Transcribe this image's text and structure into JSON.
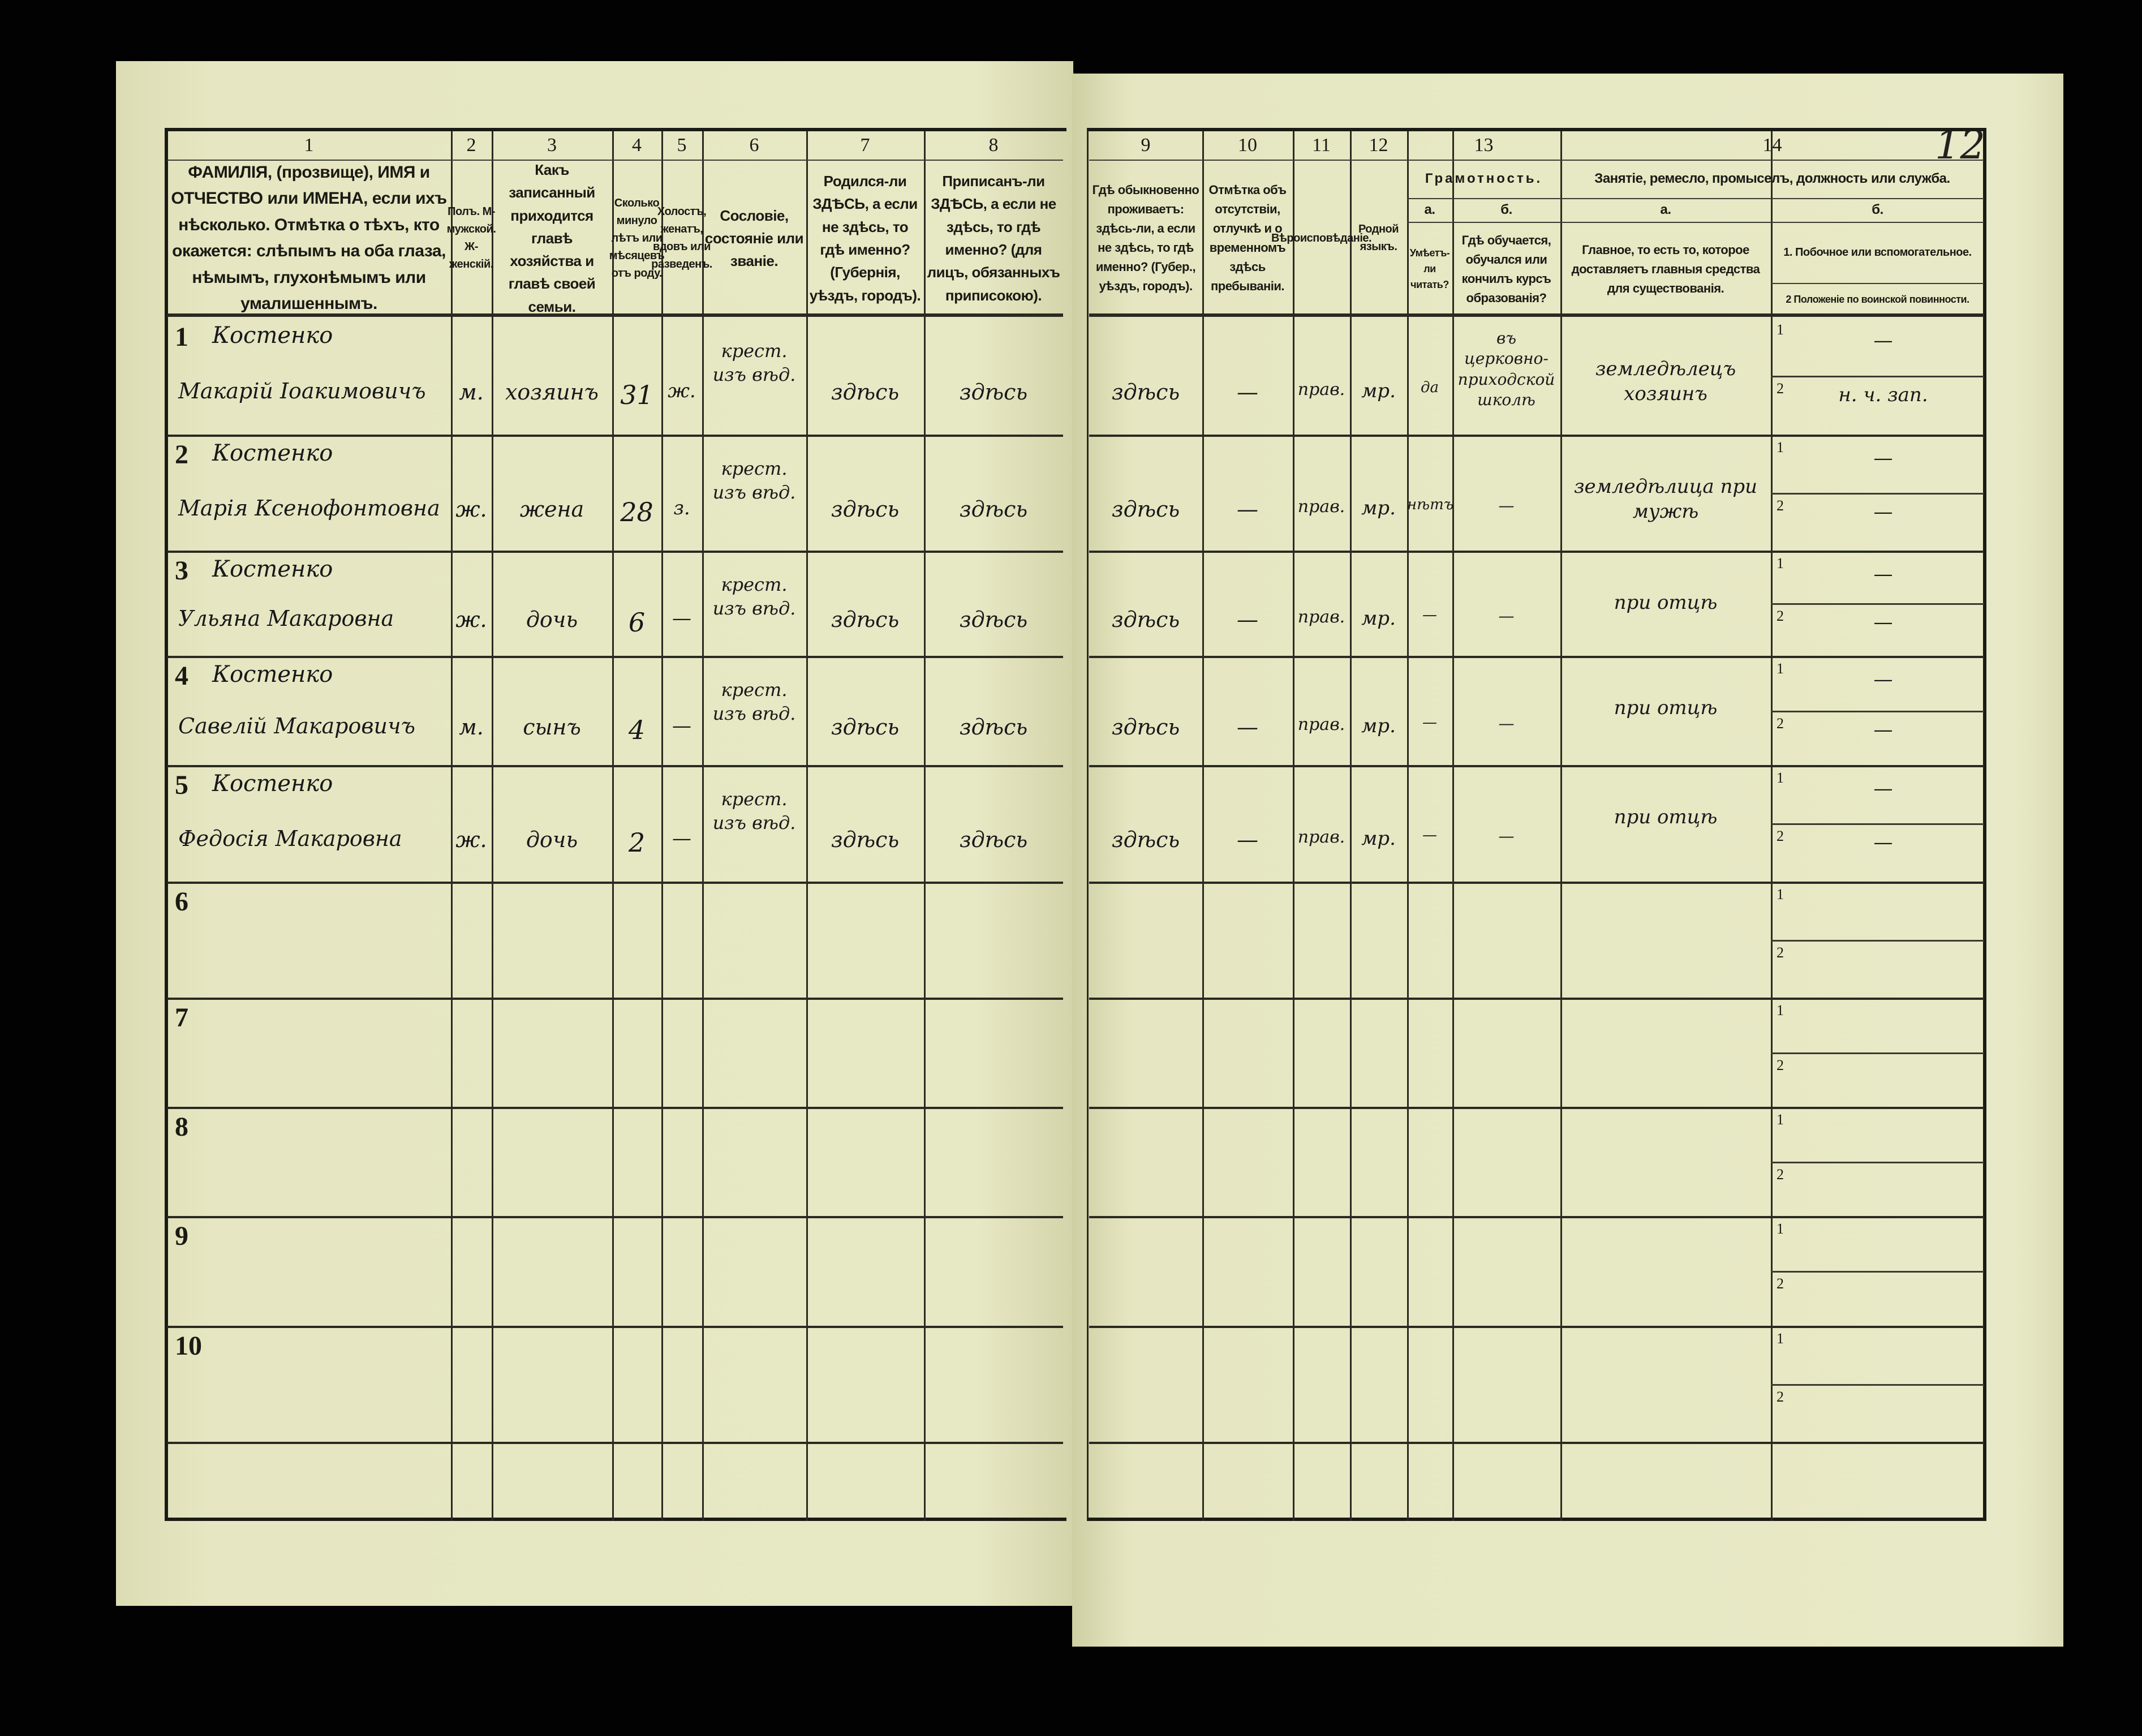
{
  "document": {
    "sheet_number_handwritten": "12",
    "left_header": {
      "columns": [
        {
          "num": "1",
          "text": "ФАМИЛІЯ, (прозвище), ИМЯ и ОТЧЕСТВО или ИМЕНА, если ихъ нѣсколько. Отмѣтка о тѣхъ, кто окажется: слѣпымъ на оба глаза, нѣмымъ, глухонѣмымъ или умалишеннымъ."
        },
        {
          "num": "2",
          "text": "Полъ. М-мужской. Ж-женскій."
        },
        {
          "num": "3",
          "text": "Какъ записанный приходится главѣ хозяйства и главѣ своей семьи."
        },
        {
          "num": "4",
          "text": "Сколько минуло лѣтъ или мѣсяцевъ отъ роду."
        },
        {
          "num": "5",
          "text": "Холостъ, женатъ, вдовъ или разведенъ."
        },
        {
          "num": "6",
          "text": "Сословіе, состояніе или званіе."
        },
        {
          "num": "7",
          "text": "Родился-ли ЗДѢСЬ, а если не здѣсь, то гдѣ именно? (Губернія, уѣздъ, городъ)."
        },
        {
          "num": "8",
          "text": "Приписанъ-ли ЗДѢСЬ, а если не здѣсь, то гдѣ именно? (для лицъ, обязанныхъ приписокою)."
        }
      ]
    },
    "right_header": {
      "col9": {
        "num": "9",
        "text": "Гдѣ обыкновенно проживаетъ: здѣсь-ли, а если не здѣсь, то гдѣ именно? (Губер., уѣздъ, городъ)."
      },
      "col10": {
        "num": "10",
        "text": "Отмѣтка объ отсутствіи, отлучкѣ и о временномъ здѣсь пребываніи."
      },
      "col11": {
        "num": "11",
        "text": "Вѣроисповѣданіе."
      },
      "col12": {
        "num": "12",
        "text": "Родной языкъ."
      },
      "col13": {
        "num": "13",
        "title": "Грамотность.",
        "a_label": "а.",
        "a_text": "Умѣетъ-ли читать?",
        "b_label": "б.",
        "b_text": "Гдѣ обучается, обучался или кончилъ курсъ образованія?"
      },
      "col14": {
        "num": "14",
        "title": "Занятіе, ремесло, промыселъ, должность или служба.",
        "a_label": "а.",
        "a_text": "Главное, то есть то, которое доставляетъ главныя средства для существованія.",
        "b_label": "б.",
        "b_text_1": "1. Побочное или вспомогательное.",
        "b_text_2": "2 Положеніе по воинской повинности."
      }
    },
    "rows": [
      {
        "n": "1",
        "surname": "Костенко",
        "name": "Макарій Іоакимовичъ",
        "sex": "м.",
        "relation": "хозяинъ",
        "age": "31",
        "marital": "ж.",
        "estate": "крест. изъ вѣд.",
        "born": "здѣсь",
        "registered": "здѣсь",
        "resides": "здѣсь",
        "absence": "—",
        "religion": "прав.",
        "language": "мр.",
        "literate": "да",
        "education": "въ церковно-приходской школѣ",
        "occupation": "земледѣлецъ хозяинъ",
        "sub1_label": "1",
        "sub1": "—",
        "sub2_label": "2",
        "sub2": "н. ч. зап."
      },
      {
        "n": "2",
        "surname": "Костенко",
        "name": "Марія Ксенофонтовна",
        "sex": "ж.",
        "relation": "жена",
        "age": "28",
        "marital": "з.",
        "estate": "крест. изъ вѣд.",
        "born": "здѣсь",
        "registered": "здѣсь",
        "resides": "здѣсь",
        "absence": "—",
        "religion": "прав.",
        "language": "мр.",
        "literate": "нѣтъ",
        "education": "—",
        "occupation": "земледѣлица при мужѣ",
        "sub1_label": "1",
        "sub1": "—",
        "sub2_label": "2",
        "sub2": "—"
      },
      {
        "n": "3",
        "surname": "Костенко",
        "name": "Ульяна Макаровна",
        "sex": "ж.",
        "relation": "дочь",
        "age": "6",
        "marital": "—",
        "estate": "крест. изъ вѣд.",
        "born": "здѣсь",
        "registered": "здѣсь",
        "resides": "здѣсь",
        "absence": "—",
        "religion": "прав.",
        "language": "мр.",
        "literate": "—",
        "education": "—",
        "occupation": "при отцѣ",
        "sub1_label": "1",
        "sub1": "—",
        "sub2_label": "2",
        "sub2": "—"
      },
      {
        "n": "4",
        "surname": "Костенко",
        "name": "Савелій Макаровичъ",
        "sex": "м.",
        "relation": "сынъ",
        "age": "4",
        "marital": "—",
        "estate": "крест. изъ вѣд.",
        "born": "здѣсь",
        "registered": "здѣсь",
        "resides": "здѣсь",
        "absence": "—",
        "religion": "прав.",
        "language": "мр.",
        "literate": "—",
        "education": "—",
        "occupation": "при отцѣ",
        "sub1_label": "1",
        "sub1": "—",
        "sub2_label": "2",
        "sub2": "—"
      },
      {
        "n": "5",
        "surname": "Костенко",
        "name": "Федосія Макаровна",
        "sex": "ж.",
        "relation": "дочь",
        "age": "2",
        "marital": "—",
        "estate": "крест. изъ вѣд.",
        "born": "здѣсь",
        "registered": "здѣсь",
        "resides": "здѣсь",
        "absence": "—",
        "religion": "прав.",
        "language": "мр.",
        "literate": "—",
        "education": "—",
        "occupation": "при отцѣ",
        "sub1_label": "1",
        "sub1": "—",
        "sub2_label": "2",
        "sub2": "—"
      },
      {
        "n": "6",
        "sub1_label": "1",
        "sub2_label": "2"
      },
      {
        "n": "7",
        "sub1_label": "1",
        "sub2_label": "2"
      },
      {
        "n": "8",
        "sub1_label": "1",
        "sub2_label": "2"
      },
      {
        "n": "9",
        "sub1_label": "1",
        "sub2_label": "2"
      },
      {
        "n": "10",
        "sub1_label": "1",
        "sub2_label": "2"
      }
    ]
  },
  "colors": {
    "background": "#020202",
    "paper": "#e4e5bf",
    "ink_print": "#1a1a14",
    "ink_hand": "#18181a"
  }
}
